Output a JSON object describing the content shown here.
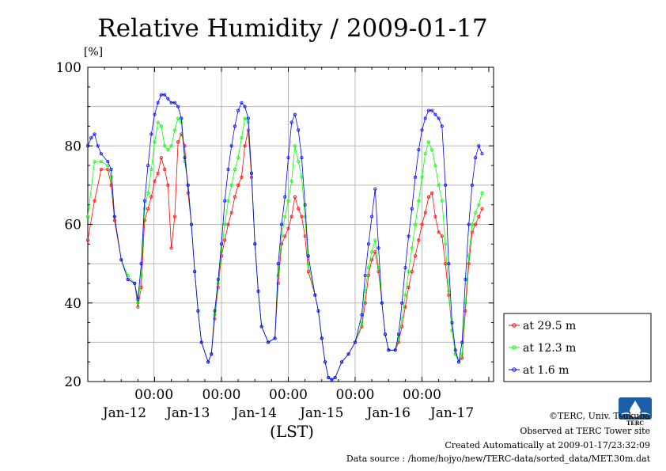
{
  "chart_data": {
    "type": "line",
    "title": "Relative Humidity / 2009-01-17",
    "ylabel": "[%]",
    "xlabel": "(LST)",
    "ylim": [
      20,
      100
    ],
    "yticks": [
      20,
      40,
      60,
      80,
      100
    ],
    "xlim": [
      0,
      6
    ],
    "time_tick_labels": [
      "00:00",
      "00:00",
      "00:00",
      "00:00",
      "00:00"
    ],
    "date_tick_labels": [
      "Jan-12",
      "Jan-13",
      "Jan-14",
      "Jan-15",
      "Jan-16",
      "Jan-17"
    ],
    "grid": true,
    "legend_position": "right",
    "marker": "open-circle",
    "series": [
      {
        "name": "at 29.5 m",
        "color": "#ff0000",
        "points": [
          [
            0.0,
            56
          ],
          [
            0.1,
            66
          ],
          [
            0.2,
            74
          ],
          [
            0.3,
            74
          ],
          [
            0.35,
            70
          ],
          [
            0.4,
            61
          ],
          [
            0.5,
            51
          ],
          [
            0.6,
            46
          ],
          [
            0.7,
            45
          ],
          [
            0.75,
            39
          ],
          [
            0.8,
            44
          ],
          [
            0.85,
            61
          ],
          [
            0.9,
            64
          ],
          [
            0.95,
            67
          ],
          [
            1.0,
            71
          ],
          [
            1.05,
            73
          ],
          [
            1.1,
            77
          ],
          [
            1.15,
            74
          ],
          [
            1.2,
            70
          ],
          [
            1.25,
            54
          ],
          [
            1.3,
            62
          ],
          [
            1.35,
            81
          ],
          [
            1.4,
            83
          ],
          [
            1.45,
            80
          ],
          [
            1.5,
            68
          ],
          [
            1.55,
            60
          ],
          [
            1.6,
            48
          ],
          [
            1.65,
            38
          ],
          [
            1.7,
            30
          ],
          [
            1.8,
            25
          ],
          [
            1.85,
            27
          ],
          [
            1.9,
            36
          ],
          [
            1.95,
            44
          ],
          [
            2.0,
            52
          ],
          [
            2.05,
            56
          ],
          [
            2.1,
            60
          ],
          [
            2.15,
            63
          ],
          [
            2.2,
            67
          ],
          [
            2.25,
            70
          ],
          [
            2.3,
            72
          ],
          [
            2.35,
            80
          ],
          [
            2.4,
            84
          ],
          [
            2.45,
            72
          ],
          [
            2.5,
            55
          ],
          [
            2.55,
            43
          ],
          [
            2.6,
            34
          ],
          [
            2.7,
            30
          ],
          [
            2.8,
            31
          ],
          [
            2.85,
            45
          ],
          [
            2.9,
            55
          ],
          [
            2.95,
            57
          ],
          [
            3.0,
            59
          ],
          [
            3.05,
            62
          ],
          [
            3.1,
            67
          ],
          [
            3.15,
            64
          ],
          [
            3.2,
            62
          ],
          [
            3.25,
            57
          ],
          [
            3.3,
            48
          ],
          [
            3.4,
            42
          ],
          [
            3.45,
            38
          ],
          [
            3.5,
            31
          ],
          [
            3.55,
            25
          ],
          [
            3.6,
            21
          ],
          [
            3.65,
            20.5
          ],
          [
            3.7,
            21
          ],
          [
            3.8,
            25
          ],
          [
            3.9,
            27
          ],
          [
            4.0,
            30
          ],
          [
            4.1,
            34
          ],
          [
            4.15,
            40
          ],
          [
            4.2,
            47
          ],
          [
            4.25,
            51
          ],
          [
            4.3,
            53
          ],
          [
            4.35,
            48
          ],
          [
            4.4,
            40
          ],
          [
            4.45,
            32
          ],
          [
            4.5,
            28
          ],
          [
            4.6,
            28
          ],
          [
            4.65,
            30
          ],
          [
            4.7,
            34
          ],
          [
            4.75,
            39
          ],
          [
            4.8,
            44
          ],
          [
            4.85,
            48
          ],
          [
            4.9,
            52
          ],
          [
            4.95,
            56
          ],
          [
            5.0,
            60
          ],
          [
            5.05,
            63
          ],
          [
            5.1,
            67
          ],
          [
            5.15,
            68
          ],
          [
            5.2,
            62
          ],
          [
            5.25,
            58
          ],
          [
            5.3,
            57
          ],
          [
            5.35,
            50
          ],
          [
            5.4,
            42
          ],
          [
            5.45,
            33
          ],
          [
            5.5,
            27
          ],
          [
            5.55,
            25
          ],
          [
            5.6,
            26
          ],
          [
            5.65,
            38
          ],
          [
            5.7,
            50
          ],
          [
            5.75,
            58
          ],
          [
            5.8,
            60
          ],
          [
            5.85,
            62
          ],
          [
            5.9,
            64
          ]
        ]
      },
      {
        "name": "at 12.3 m",
        "color": "#00ff00",
        "points": [
          [
            0.0,
            62
          ],
          [
            0.1,
            76
          ],
          [
            0.2,
            76
          ],
          [
            0.3,
            75
          ],
          [
            0.35,
            72
          ],
          [
            0.4,
            62
          ],
          [
            0.5,
            51
          ],
          [
            0.6,
            47
          ],
          [
            0.7,
            45
          ],
          [
            0.75,
            40
          ],
          [
            0.8,
            47
          ],
          [
            0.85,
            64
          ],
          [
            0.9,
            68
          ],
          [
            0.95,
            74
          ],
          [
            1.0,
            81
          ],
          [
            1.05,
            86
          ],
          [
            1.1,
            85
          ],
          [
            1.15,
            80
          ],
          [
            1.2,
            79
          ],
          [
            1.25,
            80
          ],
          [
            1.3,
            84
          ],
          [
            1.35,
            87
          ],
          [
            1.4,
            86
          ],
          [
            1.45,
            76
          ],
          [
            1.5,
            70
          ],
          [
            1.55,
            60
          ],
          [
            1.6,
            48
          ],
          [
            1.65,
            38
          ],
          [
            1.7,
            30
          ],
          [
            1.8,
            25
          ],
          [
            1.85,
            27
          ],
          [
            1.9,
            37
          ],
          [
            1.95,
            45
          ],
          [
            2.0,
            53
          ],
          [
            2.05,
            60
          ],
          [
            2.1,
            66
          ],
          [
            2.15,
            70
          ],
          [
            2.2,
            74
          ],
          [
            2.25,
            77
          ],
          [
            2.3,
            82
          ],
          [
            2.35,
            87
          ],
          [
            2.4,
            86
          ],
          [
            2.45,
            73
          ],
          [
            2.5,
            55
          ],
          [
            2.55,
            43
          ],
          [
            2.6,
            34
          ],
          [
            2.7,
            30
          ],
          [
            2.8,
            31
          ],
          [
            2.85,
            47
          ],
          [
            2.9,
            57
          ],
          [
            2.95,
            62
          ],
          [
            3.0,
            66
          ],
          [
            3.05,
            71
          ],
          [
            3.1,
            80
          ],
          [
            3.15,
            76
          ],
          [
            3.2,
            72
          ],
          [
            3.25,
            62
          ],
          [
            3.3,
            50
          ],
          [
            3.4,
            42
          ],
          [
            3.45,
            38
          ],
          [
            3.5,
            31
          ],
          [
            3.55,
            25
          ],
          [
            3.6,
            21
          ],
          [
            3.65,
            20.5
          ],
          [
            3.7,
            21
          ],
          [
            3.8,
            25
          ],
          [
            3.9,
            27
          ],
          [
            4.0,
            30
          ],
          [
            4.1,
            35
          ],
          [
            4.15,
            43
          ],
          [
            4.2,
            49
          ],
          [
            4.25,
            53
          ],
          [
            4.3,
            56
          ],
          [
            4.35,
            49
          ],
          [
            4.4,
            40
          ],
          [
            4.45,
            32
          ],
          [
            4.5,
            28
          ],
          [
            4.6,
            28
          ],
          [
            4.65,
            31
          ],
          [
            4.7,
            36
          ],
          [
            4.75,
            42
          ],
          [
            4.8,
            48
          ],
          [
            4.85,
            54
          ],
          [
            4.9,
            60
          ],
          [
            4.95,
            66
          ],
          [
            5.0,
            72
          ],
          [
            5.05,
            78
          ],
          [
            5.1,
            81
          ],
          [
            5.15,
            79
          ],
          [
            5.2,
            75
          ],
          [
            5.25,
            70
          ],
          [
            5.3,
            66
          ],
          [
            5.35,
            55
          ],
          [
            5.4,
            43
          ],
          [
            5.45,
            33
          ],
          [
            5.5,
            27
          ],
          [
            5.55,
            25
          ],
          [
            5.6,
            27
          ],
          [
            5.65,
            40
          ],
          [
            5.7,
            52
          ],
          [
            5.75,
            60
          ],
          [
            5.8,
            63
          ],
          [
            5.85,
            65
          ],
          [
            5.9,
            68
          ]
        ]
      },
      {
        "name": "at 1.6 m",
        "color": "#0000ff",
        "points": [
          [
            0.0,
            80
          ],
          [
            0.05,
            82
          ],
          [
            0.1,
            83
          ],
          [
            0.15,
            80
          ],
          [
            0.2,
            78
          ],
          [
            0.3,
            76
          ],
          [
            0.35,
            74
          ],
          [
            0.4,
            62
          ],
          [
            0.5,
            51
          ],
          [
            0.6,
            46
          ],
          [
            0.7,
            45
          ],
          [
            0.75,
            41
          ],
          [
            0.8,
            50
          ],
          [
            0.85,
            66
          ],
          [
            0.9,
            75
          ],
          [
            0.95,
            83
          ],
          [
            1.0,
            88
          ],
          [
            1.05,
            91
          ],
          [
            1.1,
            93
          ],
          [
            1.15,
            93
          ],
          [
            1.2,
            92
          ],
          [
            1.25,
            91
          ],
          [
            1.3,
            91
          ],
          [
            1.35,
            90
          ],
          [
            1.4,
            87
          ],
          [
            1.45,
            77
          ],
          [
            1.5,
            70
          ],
          [
            1.55,
            60
          ],
          [
            1.6,
            48
          ],
          [
            1.65,
            38
          ],
          [
            1.7,
            30
          ],
          [
            1.8,
            25
          ],
          [
            1.85,
            27
          ],
          [
            1.9,
            38
          ],
          [
            1.95,
            46
          ],
          [
            2.0,
            55
          ],
          [
            2.05,
            66
          ],
          [
            2.1,
            74
          ],
          [
            2.15,
            80
          ],
          [
            2.2,
            85
          ],
          [
            2.25,
            89
          ],
          [
            2.3,
            91
          ],
          [
            2.35,
            90
          ],
          [
            2.4,
            87
          ],
          [
            2.45,
            73
          ],
          [
            2.5,
            55
          ],
          [
            2.55,
            43
          ],
          [
            2.6,
            34
          ],
          [
            2.7,
            30
          ],
          [
            2.8,
            31
          ],
          [
            2.85,
            50
          ],
          [
            2.9,
            60
          ],
          [
            2.95,
            67
          ],
          [
            3.0,
            77
          ],
          [
            3.05,
            86
          ],
          [
            3.1,
            88
          ],
          [
            3.15,
            84
          ],
          [
            3.2,
            77
          ],
          [
            3.25,
            65
          ],
          [
            3.3,
            52
          ],
          [
            3.4,
            42
          ],
          [
            3.45,
            38
          ],
          [
            3.5,
            31
          ],
          [
            3.55,
            25
          ],
          [
            3.6,
            21
          ],
          [
            3.65,
            20.5
          ],
          [
            3.7,
            21
          ],
          [
            3.8,
            25
          ],
          [
            3.9,
            27
          ],
          [
            4.0,
            30
          ],
          [
            4.1,
            37
          ],
          [
            4.15,
            47
          ],
          [
            4.2,
            55
          ],
          [
            4.25,
            62
          ],
          [
            4.3,
            69
          ],
          [
            4.35,
            54
          ],
          [
            4.4,
            40
          ],
          [
            4.45,
            32
          ],
          [
            4.5,
            28
          ],
          [
            4.6,
            28
          ],
          [
            4.65,
            32
          ],
          [
            4.7,
            40
          ],
          [
            4.75,
            49
          ],
          [
            4.8,
            57
          ],
          [
            4.85,
            64
          ],
          [
            4.9,
            72
          ],
          [
            4.95,
            79
          ],
          [
            5.0,
            84
          ],
          [
            5.05,
            87
          ],
          [
            5.1,
            89
          ],
          [
            5.15,
            89
          ],
          [
            5.2,
            88
          ],
          [
            5.25,
            87
          ],
          [
            5.3,
            85
          ],
          [
            5.35,
            70
          ],
          [
            5.4,
            50
          ],
          [
            5.45,
            35
          ],
          [
            5.5,
            28
          ],
          [
            5.55,
            25
          ],
          [
            5.6,
            30
          ],
          [
            5.65,
            46
          ],
          [
            5.7,
            60
          ],
          [
            5.75,
            70
          ],
          [
            5.8,
            77
          ],
          [
            5.85,
            80
          ],
          [
            5.9,
            78
          ]
        ]
      }
    ]
  },
  "credits": {
    "copyright": "©TERC, Univ. Tsukuba",
    "observed": "Observed at TERC Tower site",
    "created": "Created Automatically at 2009-01-17/23:32:09",
    "source": "Data source : /home/hojyo/new/TERC-data/sorted_data/MET.30m.dat",
    "logo_text": "TERC"
  }
}
